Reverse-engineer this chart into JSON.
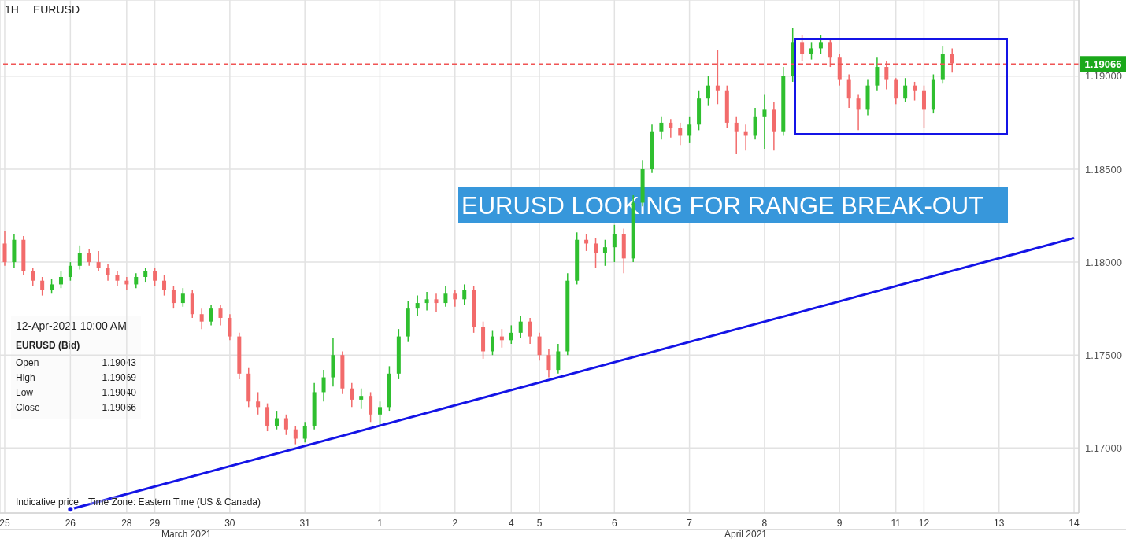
{
  "chart_data": {
    "type": "candlestick",
    "title": "EURUSD",
    "subtitle": "1H",
    "categories": [
      "25",
      null,
      null,
      null,
      null,
      null,
      null,
      "26",
      null,
      null,
      null,
      null,
      null,
      "28",
      null,
      null,
      "29",
      null,
      null,
      null,
      null,
      null,
      null,
      null,
      "30",
      null,
      null,
      null,
      null,
      null,
      null,
      null,
      "31",
      null,
      null,
      null,
      null,
      null,
      null,
      null,
      "1",
      null,
      null,
      null,
      null,
      null,
      null,
      null,
      "2",
      null,
      null,
      null,
      null,
      null,
      "4",
      null,
      null,
      "5",
      null,
      null,
      null,
      null,
      null,
      null,
      null,
      "6",
      null,
      null,
      null,
      null,
      null,
      null,
      null,
      "7",
      null,
      null,
      null,
      null,
      null,
      null,
      null,
      "8",
      null,
      null,
      null,
      null,
      null,
      null,
      null,
      "9",
      null,
      null,
      null,
      null,
      null,
      "11",
      null,
      null,
      "12",
      null,
      null,
      null,
      null,
      null,
      null,
      null,
      "13",
      null,
      null,
      null,
      null,
      null,
      null,
      null,
      "14"
    ],
    "ohlc": [
      [
        1.181,
        1.1817,
        1.1798,
        1.18
      ],
      [
        1.18,
        1.1815,
        1.1797,
        1.1812
      ],
      [
        1.1812,
        1.1814,
        1.1793,
        1.1795
      ],
      [
        1.1795,
        1.1797,
        1.1787,
        1.179
      ],
      [
        1.179,
        1.1792,
        1.1782,
        1.1785
      ],
      [
        1.1785,
        1.1791,
        1.1783,
        1.1788
      ],
      [
        1.1788,
        1.1795,
        1.1786,
        1.1792
      ],
      [
        1.1792,
        1.18,
        1.179,
        1.1798
      ],
      [
        1.1798,
        1.1809,
        1.1796,
        1.1805
      ],
      [
        1.1805,
        1.1807,
        1.1798,
        1.18
      ],
      [
        1.18,
        1.1806,
        1.1795,
        1.1797
      ],
      [
        1.1797,
        1.1799,
        1.179,
        1.1793
      ],
      [
        1.1793,
        1.1795,
        1.1787,
        1.179
      ],
      [
        1.179,
        1.1792,
        1.1785,
        1.1788
      ],
      [
        1.1788,
        1.1794,
        1.1786,
        1.1792
      ],
      [
        1.1792,
        1.1797,
        1.1789,
        1.1795
      ],
      [
        1.1795,
        1.1797,
        1.1787,
        1.179
      ],
      [
        1.179,
        1.1793,
        1.1782,
        1.1785
      ],
      [
        1.1785,
        1.1787,
        1.1775,
        1.1778
      ],
      [
        1.1778,
        1.1786,
        1.1776,
        1.1783
      ],
      [
        1.1783,
        1.1785,
        1.177,
        1.1772
      ],
      [
        1.1772,
        1.1775,
        1.1764,
        1.1768
      ],
      [
        1.1768,
        1.1777,
        1.1766,
        1.1775
      ],
      [
        1.1775,
        1.1777,
        1.1766,
        1.177
      ],
      [
        1.177,
        1.1772,
        1.1758,
        1.176
      ],
      [
        1.176,
        1.1762,
        1.1737,
        1.174
      ],
      [
        1.174,
        1.1743,
        1.1722,
        1.1725
      ],
      [
        1.1725,
        1.173,
        1.1718,
        1.1722
      ],
      [
        1.1722,
        1.1724,
        1.1709,
        1.1712
      ],
      [
        1.1712,
        1.172,
        1.171,
        1.1716
      ],
      [
        1.1716,
        1.1718,
        1.1707,
        1.171
      ],
      [
        1.171,
        1.1712,
        1.1702,
        1.1705
      ],
      [
        1.1705,
        1.1714,
        1.1703,
        1.1712
      ],
      [
        1.1712,
        1.1735,
        1.171,
        1.173
      ],
      [
        1.173,
        1.1742,
        1.1725,
        1.1738
      ],
      [
        1.1738,
        1.1759,
        1.1733,
        1.175
      ],
      [
        1.175,
        1.1752,
        1.1729,
        1.1732
      ],
      [
        1.1732,
        1.1735,
        1.1722,
        1.1726
      ],
      [
        1.1726,
        1.1732,
        1.1721,
        1.1728
      ],
      [
        1.1728,
        1.173,
        1.1714,
        1.1718
      ],
      [
        1.1718,
        1.1725,
        1.1712,
        1.1722
      ],
      [
        1.1722,
        1.1744,
        1.172,
        1.174
      ],
      [
        1.174,
        1.1764,
        1.1737,
        1.176
      ],
      [
        1.176,
        1.1779,
        1.1757,
        1.1775
      ],
      [
        1.1775,
        1.1782,
        1.1771,
        1.1778
      ],
      [
        1.1778,
        1.1784,
        1.1774,
        1.178
      ],
      [
        1.178,
        1.1783,
        1.1773,
        1.1778
      ],
      [
        1.1778,
        1.1787,
        1.1776,
        1.1783
      ],
      [
        1.1783,
        1.1785,
        1.1776,
        1.178
      ],
      [
        1.178,
        1.1788,
        1.1777,
        1.1785
      ],
      [
        1.1785,
        1.1787,
        1.1762,
        1.1765
      ],
      [
        1.1765,
        1.1768,
        1.1748,
        1.1752
      ],
      [
        1.1752,
        1.1763,
        1.175,
        1.176
      ],
      [
        1.176,
        1.1764,
        1.1754,
        1.1758
      ],
      [
        1.1758,
        1.1766,
        1.1756,
        1.1762
      ],
      [
        1.1762,
        1.1771,
        1.1759,
        1.1768
      ],
      [
        1.1768,
        1.177,
        1.1756,
        1.176
      ],
      [
        1.176,
        1.1762,
        1.1747,
        1.175
      ],
      [
        1.175,
        1.1753,
        1.1738,
        1.1742
      ],
      [
        1.1742,
        1.1756,
        1.174,
        1.1752
      ],
      [
        1.1752,
        1.1794,
        1.175,
        1.179
      ],
      [
        1.179,
        1.1816,
        1.1788,
        1.1812
      ],
      [
        1.1812,
        1.1815,
        1.1806,
        1.181
      ],
      [
        1.181,
        1.1813,
        1.1797,
        1.1805
      ],
      [
        1.1805,
        1.1812,
        1.1798,
        1.1808
      ],
      [
        1.1808,
        1.182,
        1.18,
        1.1815
      ],
      [
        1.1815,
        1.1818,
        1.1794,
        1.1802
      ],
      [
        1.1802,
        1.1836,
        1.18,
        1.1832
      ],
      [
        1.1832,
        1.1855,
        1.183,
        1.185
      ],
      [
        1.185,
        1.1874,
        1.1848,
        1.187
      ],
      [
        1.187,
        1.1878,
        1.1866,
        1.1875
      ],
      [
        1.1875,
        1.1877,
        1.1867,
        1.1872
      ],
      [
        1.1872,
        1.1875,
        1.1863,
        1.1868
      ],
      [
        1.1868,
        1.1878,
        1.1864,
        1.1874
      ],
      [
        1.1874,
        1.1892,
        1.1871,
        1.1888
      ],
      [
        1.1888,
        1.19,
        1.1884,
        1.1895
      ],
      [
        1.1895,
        1.1914,
        1.1885,
        1.1892
      ],
      [
        1.1892,
        1.1895,
        1.1872,
        1.1875
      ],
      [
        1.1875,
        1.1878,
        1.1858,
        1.187
      ],
      [
        1.187,
        1.1874,
        1.186,
        1.1868
      ],
      [
        1.1868,
        1.1883,
        1.1866,
        1.1878
      ],
      [
        1.1878,
        1.189,
        1.1861,
        1.1882
      ],
      [
        1.1882,
        1.1886,
        1.186,
        1.187
      ],
      [
        1.187,
        1.1905,
        1.1868,
        1.19
      ],
      [
        1.19,
        1.1926,
        1.1897,
        1.1918
      ],
      [
        1.1918,
        1.1922,
        1.1908,
        1.1912
      ],
      [
        1.1912,
        1.1918,
        1.1909,
        1.1915
      ],
      [
        1.1915,
        1.1922,
        1.1912,
        1.1918
      ],
      [
        1.1918,
        1.192,
        1.1905,
        1.191
      ],
      [
        1.191,
        1.1912,
        1.1895,
        1.1898
      ],
      [
        1.1898,
        1.1901,
        1.1883,
        1.1888
      ],
      [
        1.1888,
        1.189,
        1.1871,
        1.1882
      ],
      [
        1.1882,
        1.1898,
        1.1879,
        1.1895
      ],
      [
        1.1895,
        1.191,
        1.1892,
        1.1905
      ],
      [
        1.1905,
        1.1908,
        1.1893,
        1.1898
      ],
      [
        1.1898,
        1.1899,
        1.1885,
        1.1888
      ],
      [
        1.1888,
        1.1899,
        1.1886,
        1.1895
      ],
      [
        1.1895,
        1.1897,
        1.1887,
        1.1892
      ],
      [
        1.1892,
        1.1895,
        1.1872,
        1.1882
      ],
      [
        1.1882,
        1.1901,
        1.188,
        1.1898
      ],
      [
        1.1898,
        1.1916,
        1.1896,
        1.1912
      ],
      [
        1.1912,
        1.1915,
        1.1902,
        1.1907
      ],
      null,
      null,
      null,
      null,
      null,
      null,
      null,
      null,
      null,
      null,
      null,
      null,
      null
    ],
    "series": [
      {
        "type": "line",
        "x": [
          "26",
          "14"
        ],
        "values": [
          1.1667,
          1.1813
        ],
        "color": "#1414e6"
      }
    ],
    "ylim": [
      1.1665,
      1.1941
    ],
    "yticks": [
      {
        "value": 1.17,
        "label": "1.17000"
      },
      {
        "value": 1.175,
        "label": "1.17500"
      },
      {
        "value": 1.18,
        "label": "1.18000"
      },
      {
        "value": 1.185,
        "label": "1.18500"
      },
      {
        "value": 1.19,
        "label": "1.19000"
      }
    ],
    "grid": true,
    "ref_lines": [
      {
        "axis": "y",
        "value": 1.19066,
        "label": "1.19066",
        "color": "#f05555",
        "line_style": "dashed"
      }
    ],
    "annotations": [
      "EURUSD LOOKING FOR RANGE BREAK-OUT",
      "12-Apr-2021 10:00 AM",
      "EURUSD (Bid)",
      "Open",
      "1.19043",
      "High",
      "1.19069",
      "Low",
      "1.19040",
      "Close",
      "1.19066",
      "Indicative price",
      "Time Zone: Eastern Time (US & Canada)",
      "March 2021",
      "April 2021"
    ]
  }
}
